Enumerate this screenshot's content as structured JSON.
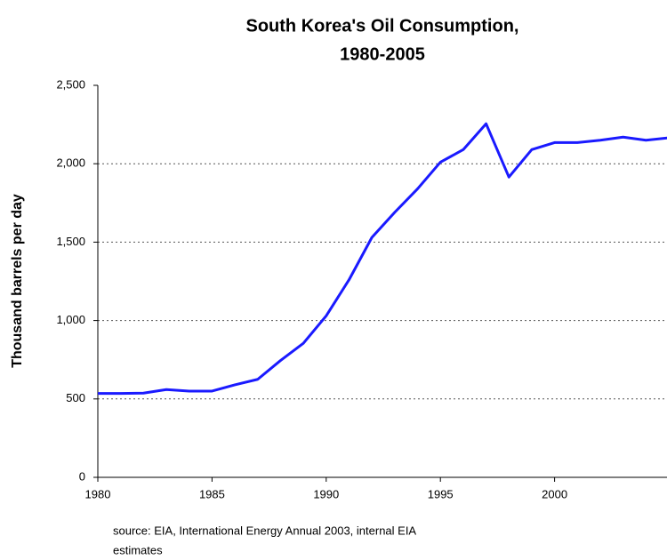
{
  "chart_data": {
    "type": "line",
    "title": [
      "South Korea's Oil Consumption,",
      "1980-2005"
    ],
    "y_label": "Thousand barrels per day",
    "source": [
      "source: EIA, International Energy Annual 2003, internal EIA",
      "estimates"
    ],
    "x": [
      1980,
      1981,
      1982,
      1983,
      1984,
      1985,
      1986,
      1987,
      1988,
      1989,
      1990,
      1991,
      1992,
      1993,
      1994,
      1995,
      1996,
      1997,
      1998,
      1999,
      2000,
      2001,
      2002,
      2003,
      2004,
      2005
    ],
    "series": [
      {
        "name": "Oil consumption",
        "color": "#1a1aff",
        "values": [
          535,
          535,
          537,
          560,
          550,
          550,
          590,
          625,
          745,
          855,
          1030,
          1260,
          1530,
          1690,
          1840,
          2010,
          2090,
          2255,
          1915,
          2090,
          2135,
          2135,
          2150,
          2170,
          2150,
          2165
        ]
      }
    ],
    "xlim": [
      1980,
      2005
    ],
    "xticks": [
      1980,
      1985,
      1990,
      1995,
      2000
    ],
    "ylim": [
      0,
      2500
    ],
    "yticks": [
      0,
      500,
      {
        "value": 1000,
        "label": "1,000"
      },
      {
        "value": 1500,
        "label": "1,500"
      },
      {
        "value": 2000,
        "label": "2,000"
      },
      {
        "value": 2500,
        "label": "2,500"
      }
    ],
    "grid": true
  }
}
